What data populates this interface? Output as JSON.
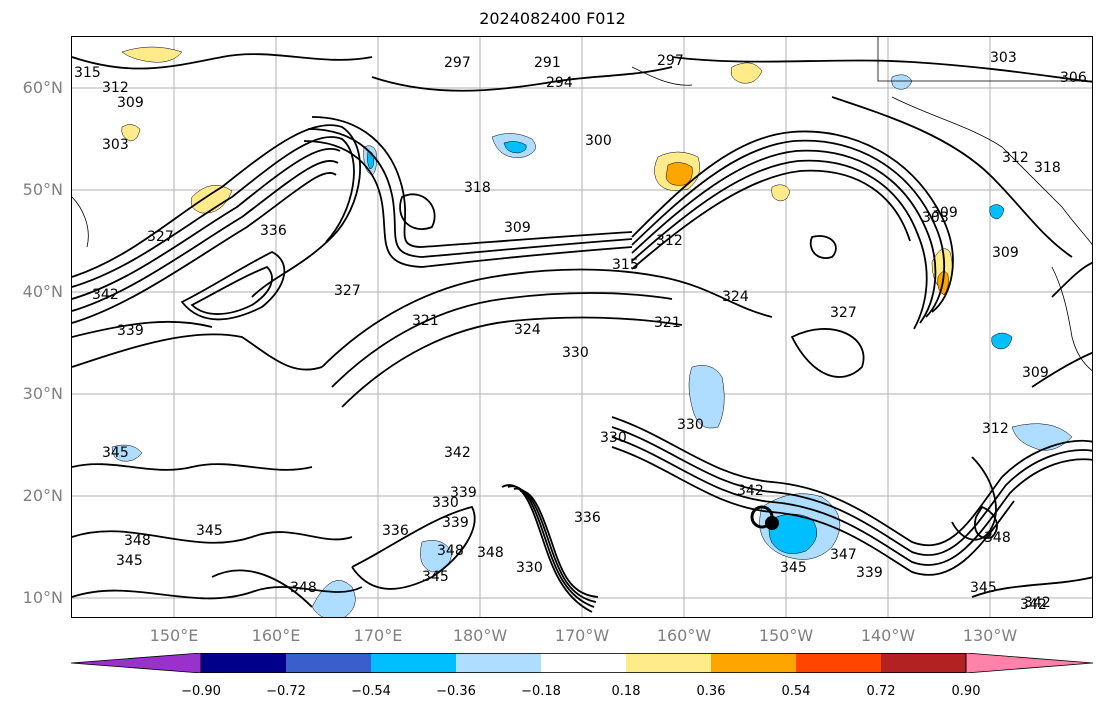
{
  "title": "2024082400 F012",
  "map": {
    "lat_labels": [
      "60°N",
      "50°N",
      "40°N",
      "30°N",
      "20°N",
      "10°N"
    ],
    "lon_labels": [
      "150°E",
      "160°E",
      "170°E",
      "180°W",
      "170°W",
      "160°W",
      "150°W",
      "140°W",
      "130°W"
    ],
    "contour_labels": [
      "315",
      "312",
      "309",
      "303",
      "297",
      "291",
      "294",
      "297",
      "300",
      "303",
      "306",
      "318",
      "312",
      "309",
      "336",
      "327",
      "342",
      "339",
      "309",
      "312",
      "315",
      "318",
      "321",
      "324",
      "327",
      "321",
      "324",
      "330",
      "327",
      "303",
      "309",
      "345",
      "342",
      "339",
      "336",
      "330",
      "330",
      "348",
      "345",
      "345",
      "348",
      "342",
      "336",
      "339",
      "348",
      "345",
      "348",
      "330",
      "342",
      "345",
      "347",
      "339",
      "330",
      "348",
      "345",
      "342",
      "312",
      "309"
    ],
    "contour_label_colors": {
      "line": "#000000",
      "grid": "#b0b0b0",
      "coast": "#000000"
    }
  },
  "colorbar": {
    "colors": [
      "#9932CC",
      "#00008B",
      "#3A5FCD",
      "#00BFFF",
      "#AEDDFF",
      "#FFFFFF",
      "#FFEB8A",
      "#FFA500",
      "#FF4500",
      "#B22222",
      "#FF82AB"
    ],
    "ticks": [
      "−0.90",
      "−0.72",
      "−0.54",
      "−0.36",
      "−0.18",
      "0.18",
      "0.36",
      "0.54",
      "0.72",
      "0.90"
    ]
  }
}
